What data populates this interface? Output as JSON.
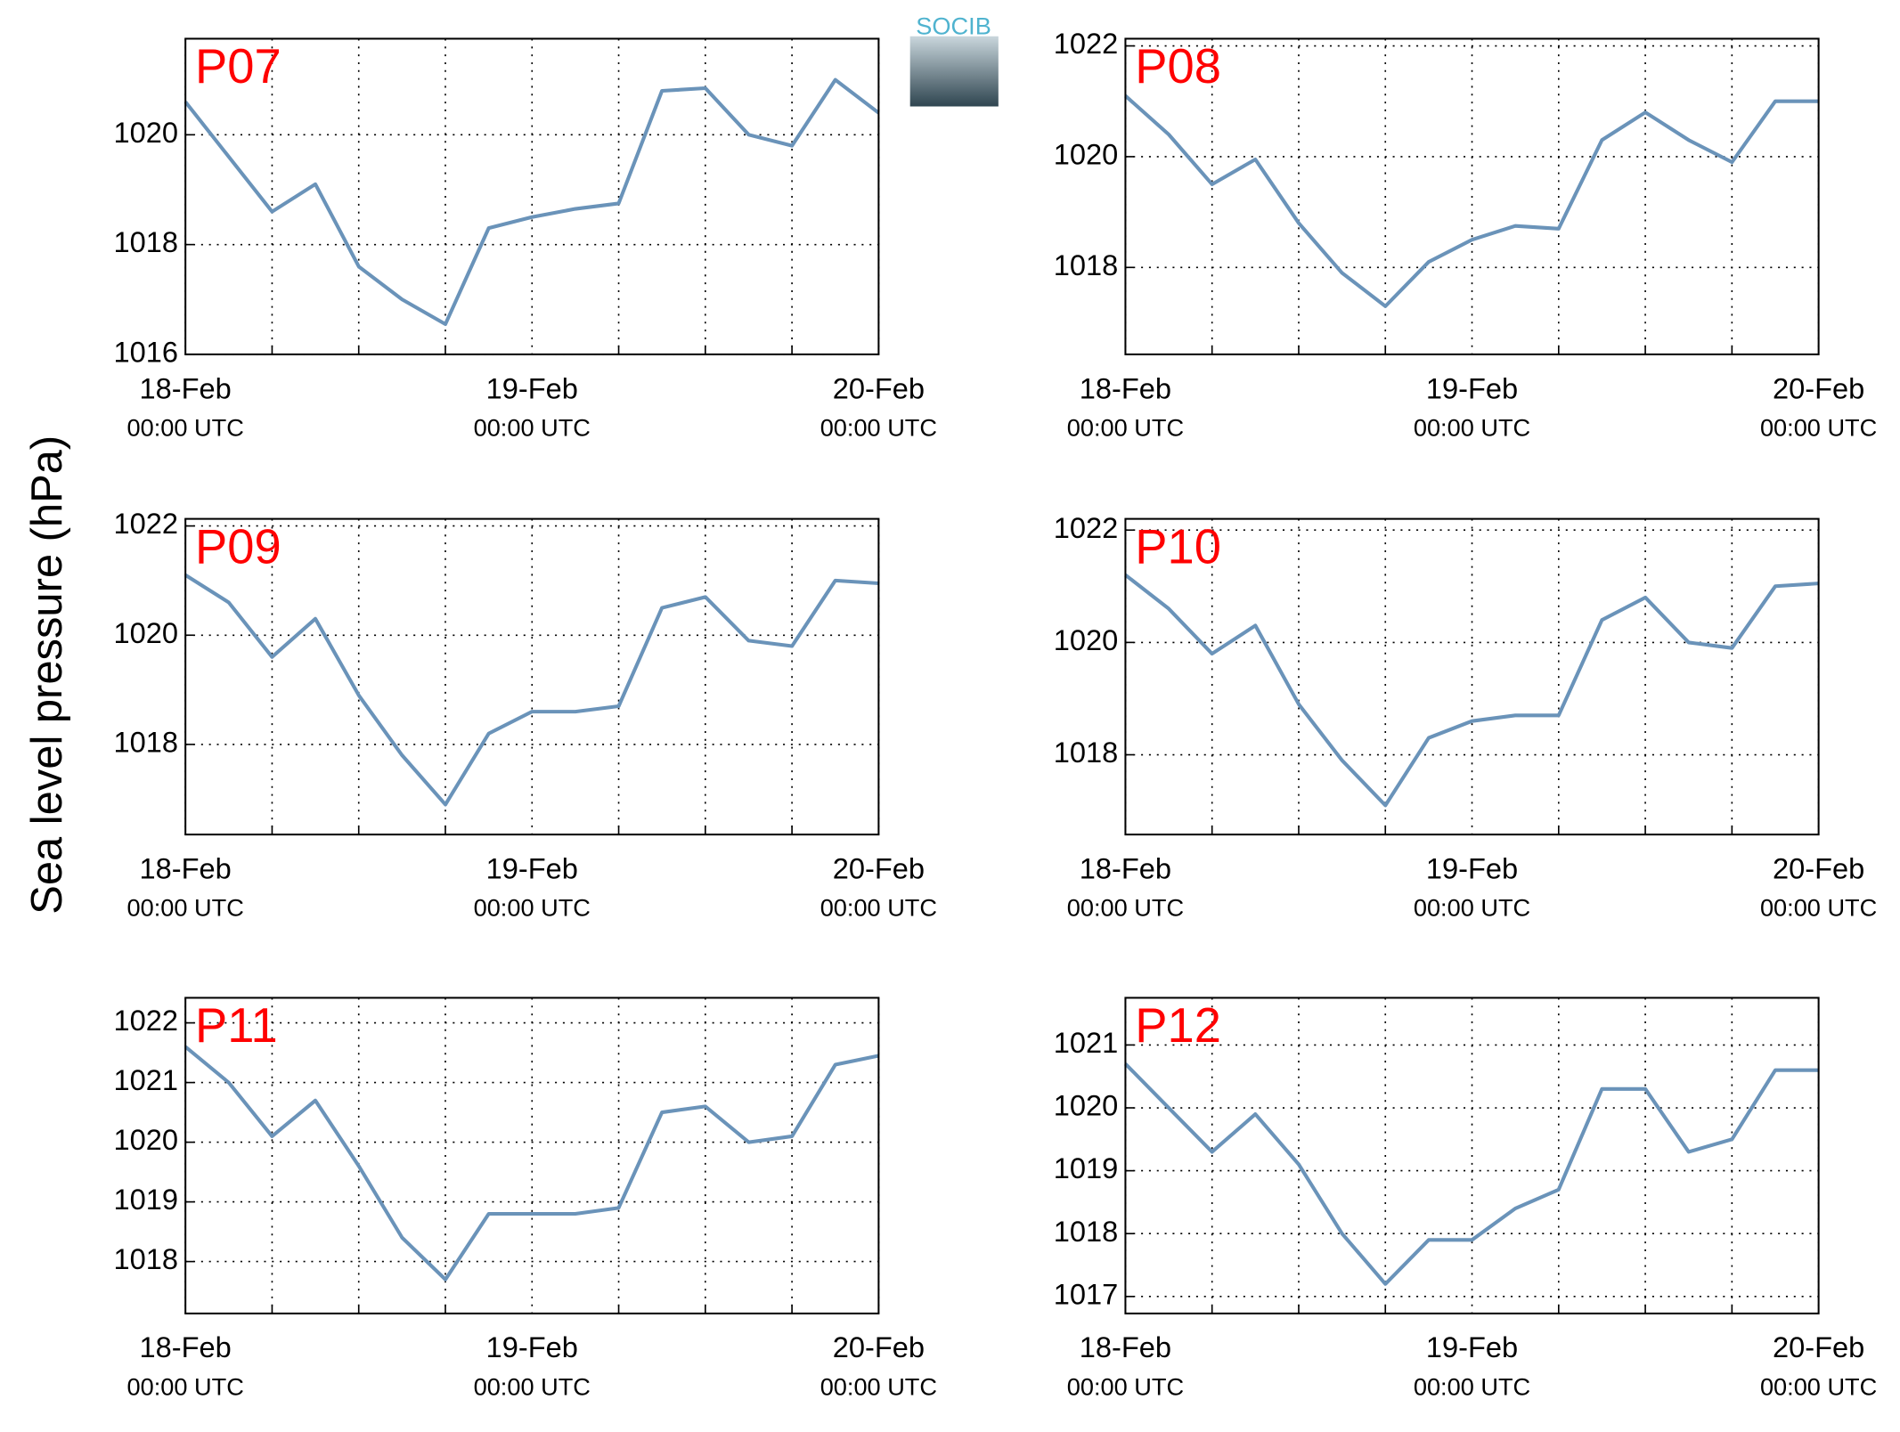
{
  "ylabel": "Sea level pressure (hPa)",
  "logo": "SOCIB",
  "chart_data": [
    {
      "type": "line",
      "title": "P07",
      "title_color": "#ff0000",
      "color": "#6a93b9",
      "grid": true,
      "x": [
        "18-Feb 00:00",
        "18-Feb 03:00",
        "18-Feb 06:00",
        "18-Feb 09:00",
        "18-Feb 12:00",
        "18-Feb 15:00",
        "18-Feb 18:00",
        "18-Feb 21:00",
        "19-Feb 00:00",
        "19-Feb 03:00",
        "19-Feb 06:00",
        "19-Feb 09:00",
        "19-Feb 12:00",
        "19-Feb 15:00",
        "19-Feb 18:00",
        "19-Feb 21:00",
        "20-Feb 00:00"
      ],
      "values": [
        1020.6,
        1019.6,
        1018.6,
        1019.1,
        1017.6,
        1017.0,
        1016.55,
        1018.3,
        1018.5,
        1018.65,
        1018.75,
        1020.8,
        1020.85,
        1020.0,
        1019.8,
        1021.0,
        1020.4
      ],
      "xlim": [
        "18-Feb 00:00",
        "20-Feb 00:00"
      ],
      "xticks": [
        {
          "value": "18-Feb 00:00",
          "label": [
            "18-Feb",
            "00:00 UTC"
          ]
        },
        {
          "value": "19-Feb 00:00",
          "label": [
            "19-Feb",
            "00:00 UTC"
          ]
        },
        {
          "value": "20-Feb 00:00",
          "label": [
            "20-Feb",
            "00:00 UTC"
          ]
        }
      ],
      "xgrid": [
        "18-Feb 06:00",
        "18-Feb 12:00",
        "18-Feb 18:00",
        "19-Feb 06:00",
        "19-Feb 12:00",
        "19-Feb 18:00"
      ],
      "ylim": [
        1016,
        1021.75
      ],
      "yticks": [
        1016,
        1018,
        1020
      ]
    },
    {
      "type": "line",
      "title": "P08",
      "title_color": "#ff0000",
      "color": "#6a93b9",
      "grid": true,
      "x": [
        "18-Feb 00:00",
        "18-Feb 03:00",
        "18-Feb 06:00",
        "18-Feb 09:00",
        "18-Feb 12:00",
        "18-Feb 15:00",
        "18-Feb 18:00",
        "18-Feb 21:00",
        "19-Feb 00:00",
        "19-Feb 03:00",
        "19-Feb 06:00",
        "19-Feb 09:00",
        "19-Feb 12:00",
        "19-Feb 15:00",
        "19-Feb 18:00",
        "19-Feb 21:00",
        "20-Feb 00:00"
      ],
      "values": [
        1021.1,
        1020.4,
        1019.5,
        1019.95,
        1018.8,
        1017.9,
        1017.3,
        1018.1,
        1018.5,
        1018.75,
        1018.7,
        1020.3,
        1020.8,
        1020.3,
        1019.9,
        1021.0,
        1021.0
      ],
      "xlim": [
        "18-Feb 00:00",
        "20-Feb 00:00"
      ],
      "xticks": [
        {
          "value": "18-Feb 00:00",
          "label": [
            "18-Feb",
            "00:00 UTC"
          ]
        },
        {
          "value": "19-Feb 00:00",
          "label": [
            "19-Feb",
            "00:00 UTC"
          ]
        },
        {
          "value": "20-Feb 00:00",
          "label": [
            "20-Feb",
            "00:00 UTC"
          ]
        }
      ],
      "xgrid": [
        "18-Feb 06:00",
        "18-Feb 12:00",
        "18-Feb 18:00",
        "19-Feb 06:00",
        "19-Feb 12:00",
        "19-Feb 18:00"
      ],
      "ylim": [
        1016.43,
        1022.13
      ],
      "yticks": [
        1018,
        1020,
        1022
      ]
    },
    {
      "type": "line",
      "title": "P09",
      "title_color": "#ff0000",
      "color": "#6a93b9",
      "grid": true,
      "x": [
        "18-Feb 00:00",
        "18-Feb 03:00",
        "18-Feb 06:00",
        "18-Feb 09:00",
        "18-Feb 12:00",
        "18-Feb 15:00",
        "18-Feb 18:00",
        "18-Feb 21:00",
        "19-Feb 00:00",
        "19-Feb 03:00",
        "19-Feb 06:00",
        "19-Feb 09:00",
        "19-Feb 12:00",
        "19-Feb 15:00",
        "19-Feb 18:00",
        "19-Feb 21:00",
        "20-Feb 00:00"
      ],
      "values": [
        1021.1,
        1020.6,
        1019.6,
        1020.3,
        1018.9,
        1017.8,
        1016.9,
        1018.2,
        1018.6,
        1018.6,
        1018.7,
        1020.5,
        1020.7,
        1019.9,
        1019.8,
        1021.0,
        1020.95
      ],
      "xlim": [
        "18-Feb 00:00",
        "20-Feb 00:00"
      ],
      "xticks": [
        {
          "value": "18-Feb 00:00",
          "label": [
            "18-Feb",
            "00:00 UTC"
          ]
        },
        {
          "value": "19-Feb 00:00",
          "label": [
            "19-Feb",
            "00:00 UTC"
          ]
        },
        {
          "value": "20-Feb 00:00",
          "label": [
            "20-Feb",
            "00:00 UTC"
          ]
        }
      ],
      "xgrid": [
        "18-Feb 06:00",
        "18-Feb 12:00",
        "18-Feb 18:00",
        "19-Feb 06:00",
        "19-Feb 12:00",
        "19-Feb 18:00"
      ],
      "ylim": [
        1016.35,
        1022.13
      ],
      "yticks": [
        1018,
        1020,
        1022
      ]
    },
    {
      "type": "line",
      "title": "P10",
      "title_color": "#ff0000",
      "color": "#6a93b9",
      "grid": true,
      "x": [
        "18-Feb 00:00",
        "18-Feb 03:00",
        "18-Feb 06:00",
        "18-Feb 09:00",
        "18-Feb 12:00",
        "18-Feb 15:00",
        "18-Feb 18:00",
        "18-Feb 21:00",
        "19-Feb 00:00",
        "19-Feb 03:00",
        "19-Feb 06:00",
        "19-Feb 09:00",
        "19-Feb 12:00",
        "19-Feb 15:00",
        "19-Feb 18:00",
        "19-Feb 21:00",
        "20-Feb 00:00"
      ],
      "values": [
        1021.2,
        1020.6,
        1019.8,
        1020.3,
        1018.9,
        1017.9,
        1017.1,
        1018.3,
        1018.6,
        1018.7,
        1018.7,
        1020.4,
        1020.8,
        1020.0,
        1019.9,
        1021.0,
        1021.05
      ],
      "xlim": [
        "18-Feb 00:00",
        "20-Feb 00:00"
      ],
      "xticks": [
        {
          "value": "18-Feb 00:00",
          "label": [
            "18-Feb",
            "00:00 UTC"
          ]
        },
        {
          "value": "19-Feb 00:00",
          "label": [
            "19-Feb",
            "00:00 UTC"
          ]
        },
        {
          "value": "20-Feb 00:00",
          "label": [
            "20-Feb",
            "00:00 UTC"
          ]
        }
      ],
      "xgrid": [
        "18-Feb 06:00",
        "18-Feb 12:00",
        "18-Feb 18:00",
        "19-Feb 06:00",
        "19-Feb 12:00",
        "19-Feb 18:00"
      ],
      "ylim": [
        1016.58,
        1022.2
      ],
      "yticks": [
        1018,
        1020,
        1022
      ]
    },
    {
      "type": "line",
      "title": "P11",
      "title_color": "#ff0000",
      "color": "#6a93b9",
      "grid": true,
      "x": [
        "18-Feb 00:00",
        "18-Feb 03:00",
        "18-Feb 06:00",
        "18-Feb 09:00",
        "18-Feb 12:00",
        "18-Feb 15:00",
        "18-Feb 18:00",
        "18-Feb 21:00",
        "19-Feb 00:00",
        "19-Feb 03:00",
        "19-Feb 06:00",
        "19-Feb 09:00",
        "19-Feb 12:00",
        "19-Feb 15:00",
        "19-Feb 18:00",
        "19-Feb 21:00",
        "20-Feb 00:00"
      ],
      "values": [
        1021.6,
        1021.0,
        1020.1,
        1020.7,
        1019.6,
        1018.4,
        1017.7,
        1018.8,
        1018.8,
        1018.8,
        1018.9,
        1020.5,
        1020.6,
        1020.0,
        1020.1,
        1021.3,
        1021.45
      ],
      "xlim": [
        "18-Feb 00:00",
        "20-Feb 00:00"
      ],
      "xticks": [
        {
          "value": "18-Feb 00:00",
          "label": [
            "18-Feb",
            "00:00 UTC"
          ]
        },
        {
          "value": "19-Feb 00:00",
          "label": [
            "19-Feb",
            "00:00 UTC"
          ]
        },
        {
          "value": "20-Feb 00:00",
          "label": [
            "20-Feb",
            "00:00 UTC"
          ]
        }
      ],
      "xgrid": [
        "18-Feb 06:00",
        "18-Feb 12:00",
        "18-Feb 18:00",
        "19-Feb 06:00",
        "19-Feb 12:00",
        "19-Feb 18:00"
      ],
      "ylim": [
        1017.13,
        1022.42
      ],
      "yticks": [
        1018,
        1019,
        1020,
        1021,
        1022
      ]
    },
    {
      "type": "line",
      "title": "P12",
      "title_color": "#ff0000",
      "color": "#6a93b9",
      "grid": true,
      "x": [
        "18-Feb 00:00",
        "18-Feb 03:00",
        "18-Feb 06:00",
        "18-Feb 09:00",
        "18-Feb 12:00",
        "18-Feb 15:00",
        "18-Feb 18:00",
        "18-Feb 21:00",
        "19-Feb 00:00",
        "19-Feb 03:00",
        "19-Feb 06:00",
        "19-Feb 09:00",
        "19-Feb 12:00",
        "19-Feb 15:00",
        "19-Feb 18:00",
        "19-Feb 21:00",
        "20-Feb 00:00"
      ],
      "values": [
        1020.7,
        1020.0,
        1019.3,
        1019.9,
        1019.1,
        1018.0,
        1017.2,
        1017.9,
        1017.9,
        1018.4,
        1018.7,
        1020.3,
        1020.3,
        1019.3,
        1019.5,
        1020.6,
        1020.6
      ],
      "xlim": [
        "18-Feb 00:00",
        "20-Feb 00:00"
      ],
      "xticks": [
        {
          "value": "18-Feb 00:00",
          "label": [
            "18-Feb",
            "00:00 UTC"
          ]
        },
        {
          "value": "19-Feb 00:00",
          "label": [
            "19-Feb",
            "00:00 UTC"
          ]
        },
        {
          "value": "20-Feb 00:00",
          "label": [
            "20-Feb",
            "00:00 UTC"
          ]
        }
      ],
      "xgrid": [
        "18-Feb 06:00",
        "18-Feb 12:00",
        "18-Feb 18:00",
        "19-Feb 06:00",
        "19-Feb 12:00",
        "19-Feb 18:00"
      ],
      "ylim": [
        1016.73,
        1021.75
      ],
      "yticks": [
        1017,
        1018,
        1019,
        1020,
        1021
      ]
    }
  ]
}
